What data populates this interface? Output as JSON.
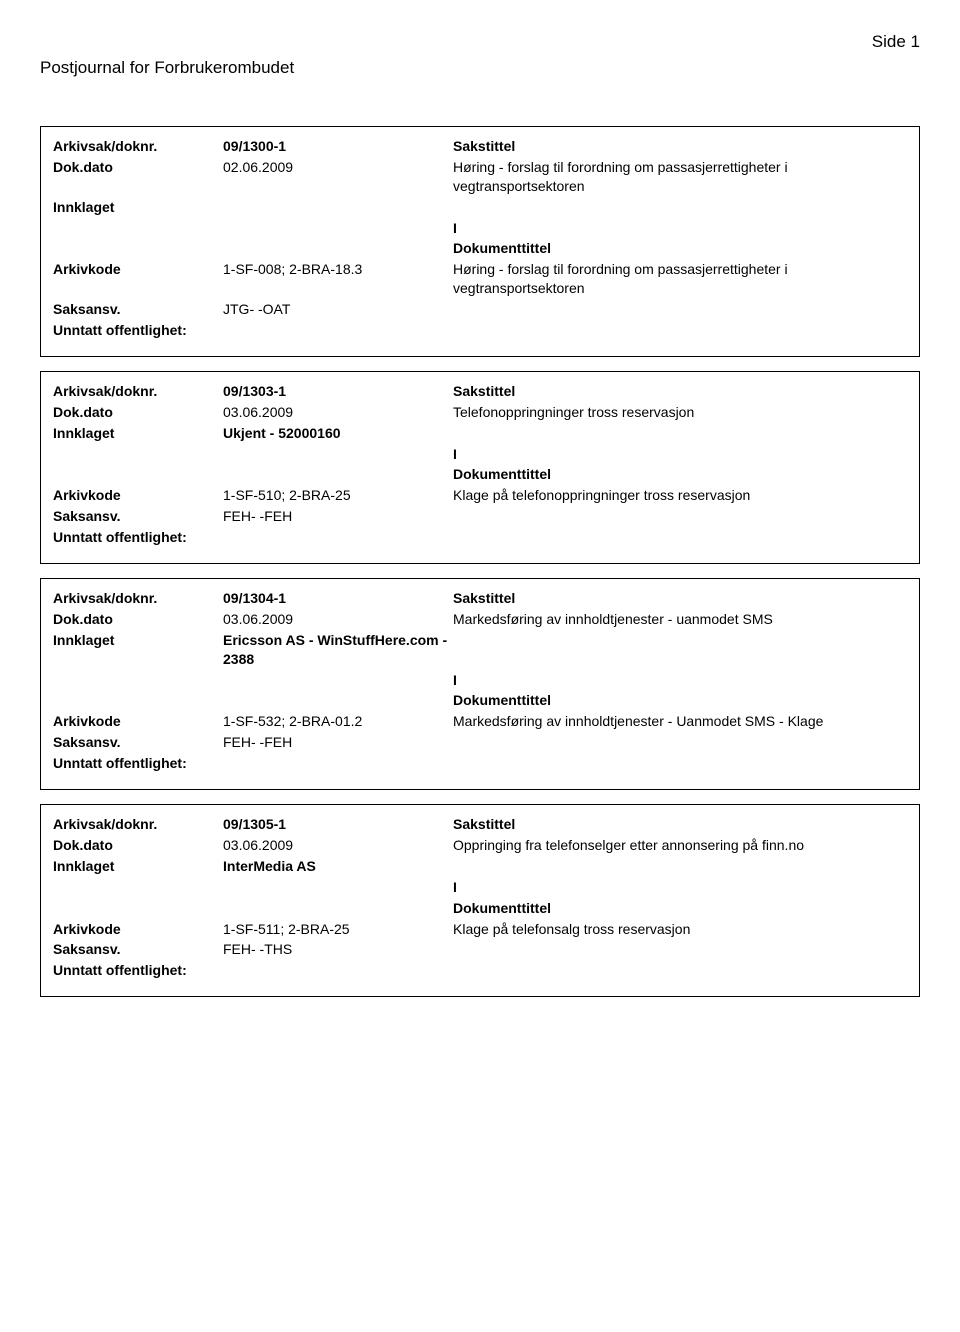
{
  "page": {
    "number_label": "Side 1",
    "title": "Postjournal for Forbrukerombudet"
  },
  "labels": {
    "arkivsak": "Arkivsak/doknr.",
    "dokdato": "Dok.dato",
    "innklaget": "Innklaget",
    "arkivkode": "Arkivkode",
    "saksansv": "Saksansv.",
    "unntatt": "Unntatt offentlighet:",
    "sakstittel": "Sakstittel",
    "dokumenttittel": "Dokumenttittel"
  },
  "records": [
    {
      "arkivsak": "09/1300-1",
      "dokdato": "02.06.2009",
      "sakstittel": "Høring - forslag til forordning om passasjerrettigheter i vegtransportsektoren",
      "innklaget": "",
      "doc_marker": "I",
      "arkivkode": "1-SF-008; 2-BRA-18.3",
      "dokumenttittel": "Høring - forslag til forordning om passasjerrettigheter i vegtransportsektoren",
      "saksansv": "JTG- -OAT",
      "unntatt": ""
    },
    {
      "arkivsak": "09/1303-1",
      "dokdato": "03.06.2009",
      "sakstittel": "Telefonoppringninger tross reservasjon",
      "innklaget": "Ukjent - 52000160",
      "doc_marker": "I",
      "arkivkode": "1-SF-510; 2-BRA-25",
      "dokumenttittel": "Klage på telefonoppringninger tross reservasjon",
      "saksansv": "FEH- -FEH",
      "unntatt": ""
    },
    {
      "arkivsak": "09/1304-1",
      "dokdato": "03.06.2009",
      "sakstittel": "Markedsføring av innholdtjenester - uanmodet SMS",
      "innklaget": "Ericsson AS - WinStuffHere.com - 2388",
      "doc_marker": "I",
      "arkivkode": "1-SF-532; 2-BRA-01.2",
      "dokumenttittel": "Markedsføring av innholdtjenester - Uanmodet SMS - Klage",
      "saksansv": "FEH- -FEH",
      "unntatt": ""
    },
    {
      "arkivsak": "09/1305-1",
      "dokdato": "03.06.2009",
      "sakstittel": "Oppringing fra telefonselger etter annonsering på finn.no",
      "innklaget": "InterMedia AS",
      "doc_marker": "I",
      "arkivkode": "1-SF-511; 2-BRA-25",
      "dokumenttittel": "Klage på telefonsalg tross reservasjon",
      "saksansv": "FEH- -THS",
      "unntatt": ""
    }
  ]
}
